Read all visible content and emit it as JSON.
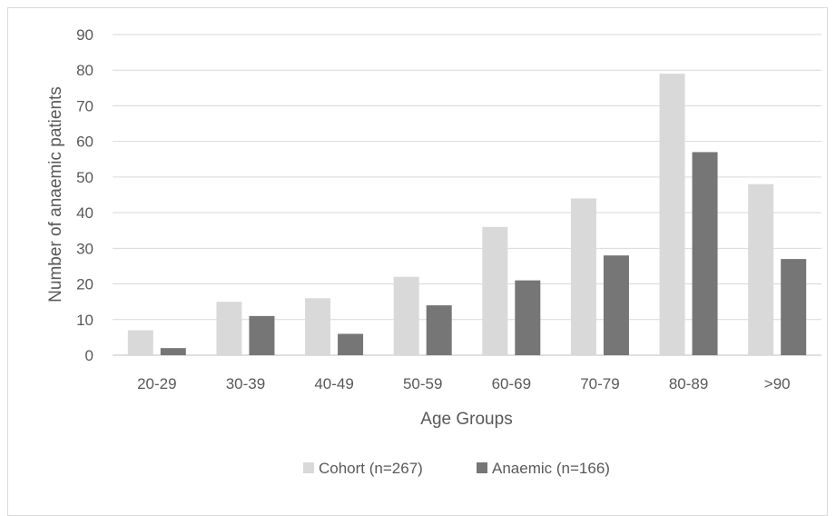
{
  "chart_data": {
    "type": "bar",
    "title": "",
    "xlabel": "Age Groups",
    "ylabel": "Number of anaemic patients",
    "ylim": [
      0,
      90
    ],
    "yticks": [
      0,
      10,
      20,
      30,
      40,
      50,
      60,
      70,
      80,
      90
    ],
    "categories": [
      "20-29",
      "30-39",
      "40-49",
      "50-59",
      "60-69",
      "70-79",
      "80-89",
      ">90"
    ],
    "series": [
      {
        "name": "Cohort (n=267)",
        "color": "#d9d9d9",
        "values": [
          7,
          15,
          16,
          22,
          36,
          44,
          79,
          48
        ]
      },
      {
        "name": "Anaemic (n=166)",
        "color": "#767676",
        "values": [
          2,
          11,
          6,
          14,
          21,
          28,
          57,
          27
        ]
      }
    ],
    "grid": true,
    "legend_position": "bottom"
  }
}
